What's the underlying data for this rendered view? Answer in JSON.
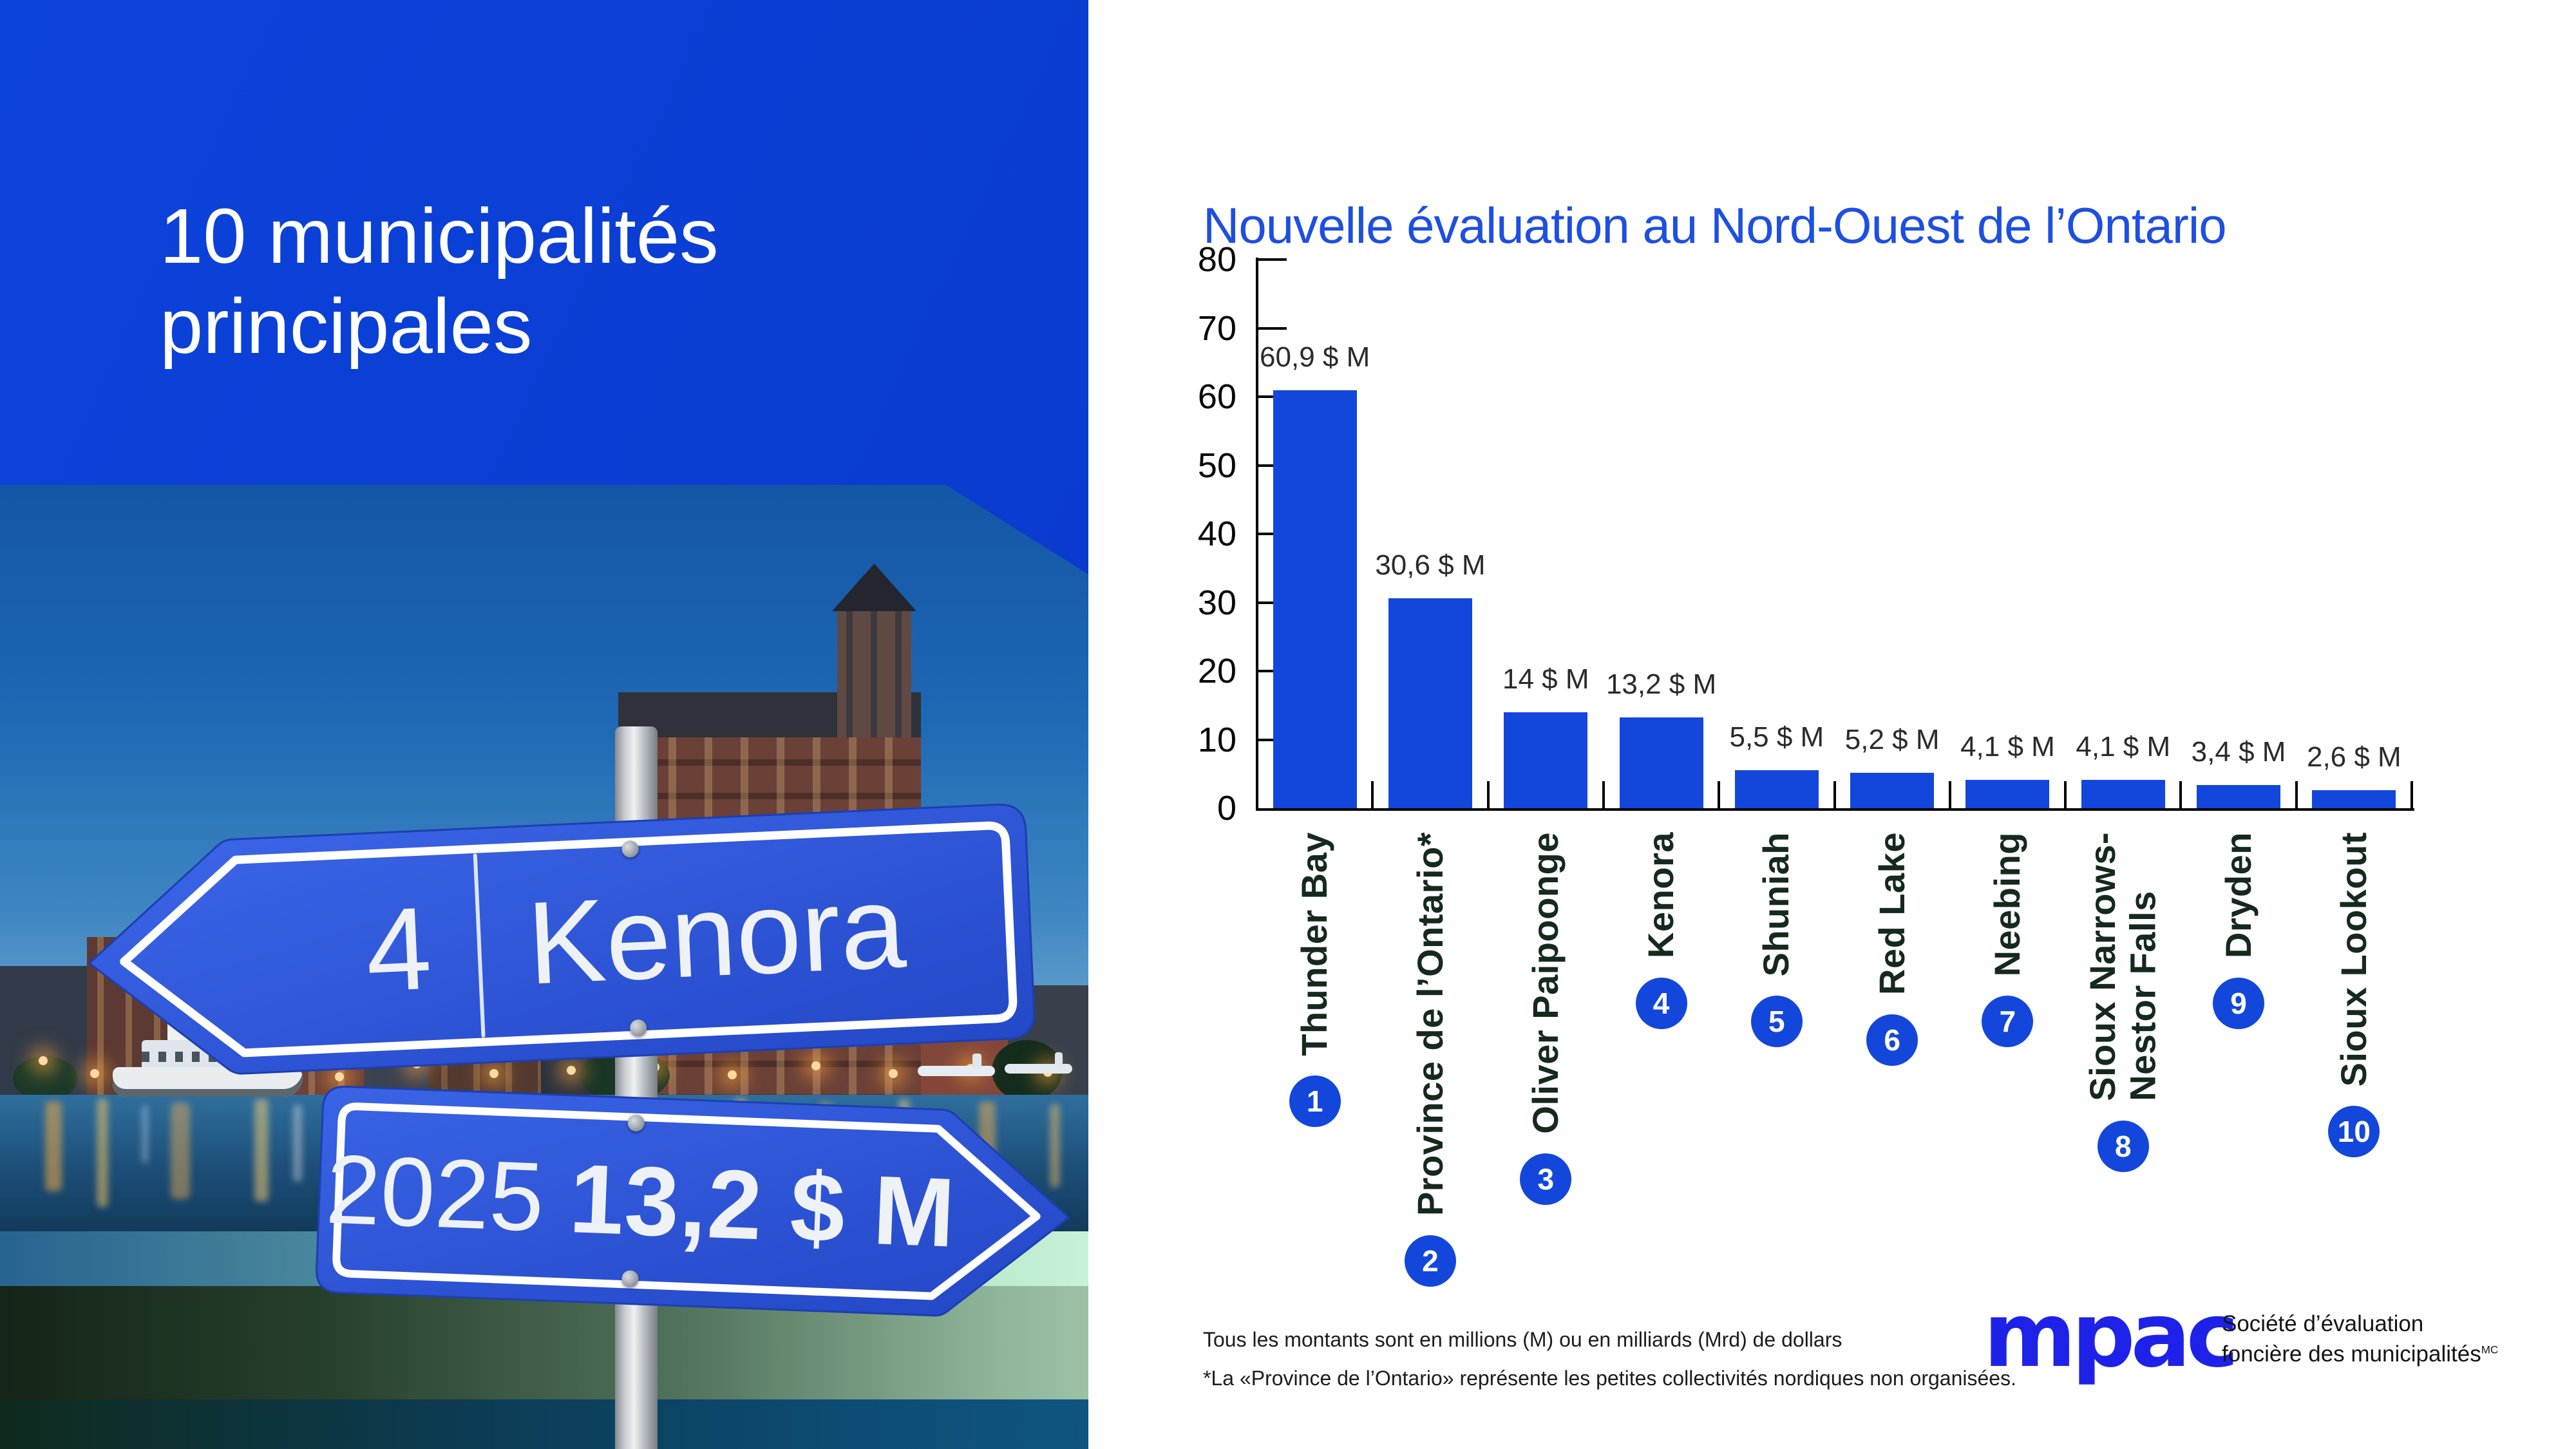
{
  "left_panel": {
    "title": "10 municipalités\nprincipales",
    "sign_top": {
      "rank": "4",
      "name": "Kenora"
    },
    "sign_bottom": {
      "year": "2025",
      "amount": "13,2 $ M"
    }
  },
  "chart_data": {
    "type": "bar",
    "title": "Nouvelle évaluation au Nord-Ouest de l’Ontario",
    "categories": [
      "Thunder Bay",
      "Province de l’Ontario*",
      "Oliver Paipoonge",
      "Kenora",
      "Shuniah",
      "Red Lake",
      "Neebing",
      "Sioux Narrows-\nNestor Falls",
      "Dryden",
      "Sioux Lookout"
    ],
    "values": [
      60.9,
      30.6,
      14,
      13.2,
      5.5,
      5.2,
      4.1,
      4.1,
      3.4,
      2.6
    ],
    "value_labels": [
      "60,9 $ M",
      "30,6 $ M",
      "14 $ M",
      "13,2 $ M",
      "5,5 $ M",
      "5,2 $ M",
      "4,1 $ M",
      "4,1 $ M",
      "3,4 $ M",
      "2,6 $ M"
    ],
    "ranks": [
      "1",
      "2",
      "3",
      "4",
      "5",
      "6",
      "7",
      "8",
      "9",
      "10"
    ],
    "xlabel": "",
    "ylabel": "",
    "ylim": [
      0,
      80
    ],
    "yticks": [
      0,
      10,
      20,
      30,
      40,
      50,
      60,
      70,
      80
    ],
    "grid": false,
    "legend": null,
    "bar_color": "#1347DB"
  },
  "footnotes": {
    "line1": "Tous les montants sont en millions (M) ou en milliards (Mrd) de dollars",
    "line2": "*La «Province de l’Ontario» représente les petites collectivités nordiques non organisées."
  },
  "brand": {
    "logo": "mpac",
    "tagline_line1": "Société d’évaluation",
    "tagline_line2": "foncière des municipalités",
    "trademark": "MC"
  },
  "colors": {
    "brand_blue": "#1347DB",
    "header_blue": "#0B41D6",
    "chart_title_blue": "#1D4FE0",
    "category_label_green": "#15291E",
    "sign_blue": "#2B55DE",
    "logo_blue": "#1E22E9"
  }
}
